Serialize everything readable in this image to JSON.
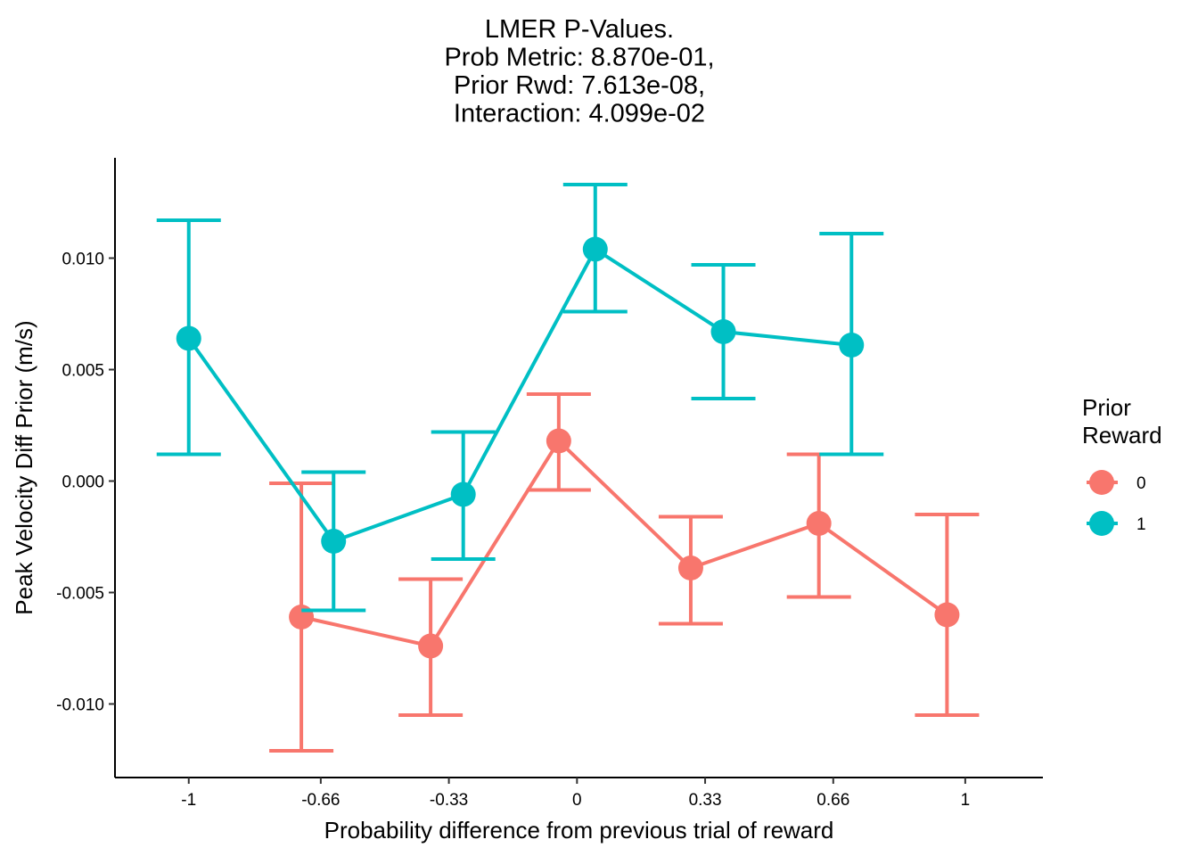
{
  "chart_data": {
    "type": "line",
    "title_lines": [
      "LMER P-Values.",
      "Prob Metric: 8.870e-01,",
      "Prior Rwd: 7.613e-08,",
      "Interaction: 4.099e-02"
    ],
    "xlabel": "Probability difference from previous trial of reward",
    "ylabel": "Peak Velocity Diff Prior (m/s)",
    "x_ticks": [
      {
        "value": -1,
        "label": "-1"
      },
      {
        "value": -0.66,
        "label": "-0.66"
      },
      {
        "value": -0.33,
        "label": "-0.33"
      },
      {
        "value": 0,
        "label": "0"
      },
      {
        "value": 0.33,
        "label": "0.33"
      },
      {
        "value": 0.66,
        "label": "0.66"
      },
      {
        "value": 1,
        "label": "1"
      }
    ],
    "y_ticks": [
      {
        "value": -0.01,
        "label": "-0.010"
      },
      {
        "value": -0.005,
        "label": "-0.005"
      },
      {
        "value": 0,
        "label": "0.000"
      },
      {
        "value": 0.005,
        "label": "0.005"
      },
      {
        "value": 0.01,
        "label": "0.010"
      }
    ],
    "xlim": [
      -1.19,
      1.2
    ],
    "ylim": [
      -0.0133,
      0.0145
    ],
    "grid": false,
    "legend": {
      "title_lines": [
        "Prior",
        "Reward"
      ],
      "position": "right"
    },
    "series": [
      {
        "name": "0",
        "color": "#F8766D",
        "points": [
          {
            "x": -0.71,
            "y": -0.0061,
            "ymin": -0.0121,
            "ymax": -0.0001
          },
          {
            "x": -0.377,
            "y": -0.0074,
            "ymin": -0.0105,
            "ymax": -0.0044
          },
          {
            "x": -0.047,
            "y": 0.0018,
            "ymin": -0.0004,
            "ymax": 0.0039
          },
          {
            "x": 0.293,
            "y": -0.0039,
            "ymin": -0.0064,
            "ymax": -0.0016
          },
          {
            "x": 0.623,
            "y": -0.0019,
            "ymin": -0.0052,
            "ymax": 0.0012
          },
          {
            "x": 0.953,
            "y": -0.006,
            "ymin": -0.0105,
            "ymax": -0.0015
          }
        ]
      },
      {
        "name": "1",
        "color": "#00BFC4",
        "points": [
          {
            "x": -1.0,
            "y": 0.0064,
            "ymin": 0.0012,
            "ymax": 0.0117
          },
          {
            "x": -0.627,
            "y": -0.0027,
            "ymin": -0.0058,
            "ymax": 0.0004
          },
          {
            "x": -0.293,
            "y": -0.0006,
            "ymin": -0.0035,
            "ymax": 0.0022
          },
          {
            "x": 0.047,
            "y": 0.0104,
            "ymin": 0.0076,
            "ymax": 0.0133
          },
          {
            "x": 0.377,
            "y": 0.0067,
            "ymin": 0.0037,
            "ymax": 0.0097
          },
          {
            "x": 0.707,
            "y": 0.0061,
            "ymin": 0.0012,
            "ymax": 0.0111
          }
        ]
      }
    ]
  }
}
